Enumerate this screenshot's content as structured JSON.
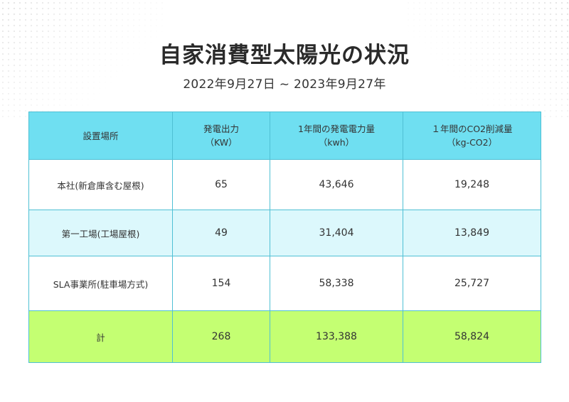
{
  "page": {
    "title": "自家消費型太陽光の状況",
    "period": "2022年9月27日 ~ 2023年9月27年"
  },
  "table": {
    "headers": [
      {
        "line1": "設置場所",
        "line2": ""
      },
      {
        "line1": "発電出力",
        "line2": "（KW）"
      },
      {
        "line1": "1年間の発電電力量",
        "line2": "（kwh）"
      },
      {
        "line1": "１年間のCO2削減量",
        "line2": "（kg-CO2）"
      }
    ],
    "rows": [
      {
        "location": "本社(新倉庫含む屋根)",
        "output": "65",
        "generation": "43,646",
        "co2": "19,248"
      },
      {
        "location": "第一工場(工場屋根)",
        "output": "49",
        "generation": "31,404",
        "co2": "13,849"
      },
      {
        "location": "SLA事業所(駐車場方式)",
        "output": "154",
        "generation": "58,338",
        "co2": "25,727"
      }
    ],
    "total": {
      "location": "計",
      "output": "268",
      "generation": "133,388",
      "co2": "58,824"
    }
  },
  "colors": {
    "header_bg": "#6fdff1",
    "stripe_bg": "#dcf8fc",
    "total_bg": "#c4ff72",
    "border": "#4fc0d4"
  }
}
